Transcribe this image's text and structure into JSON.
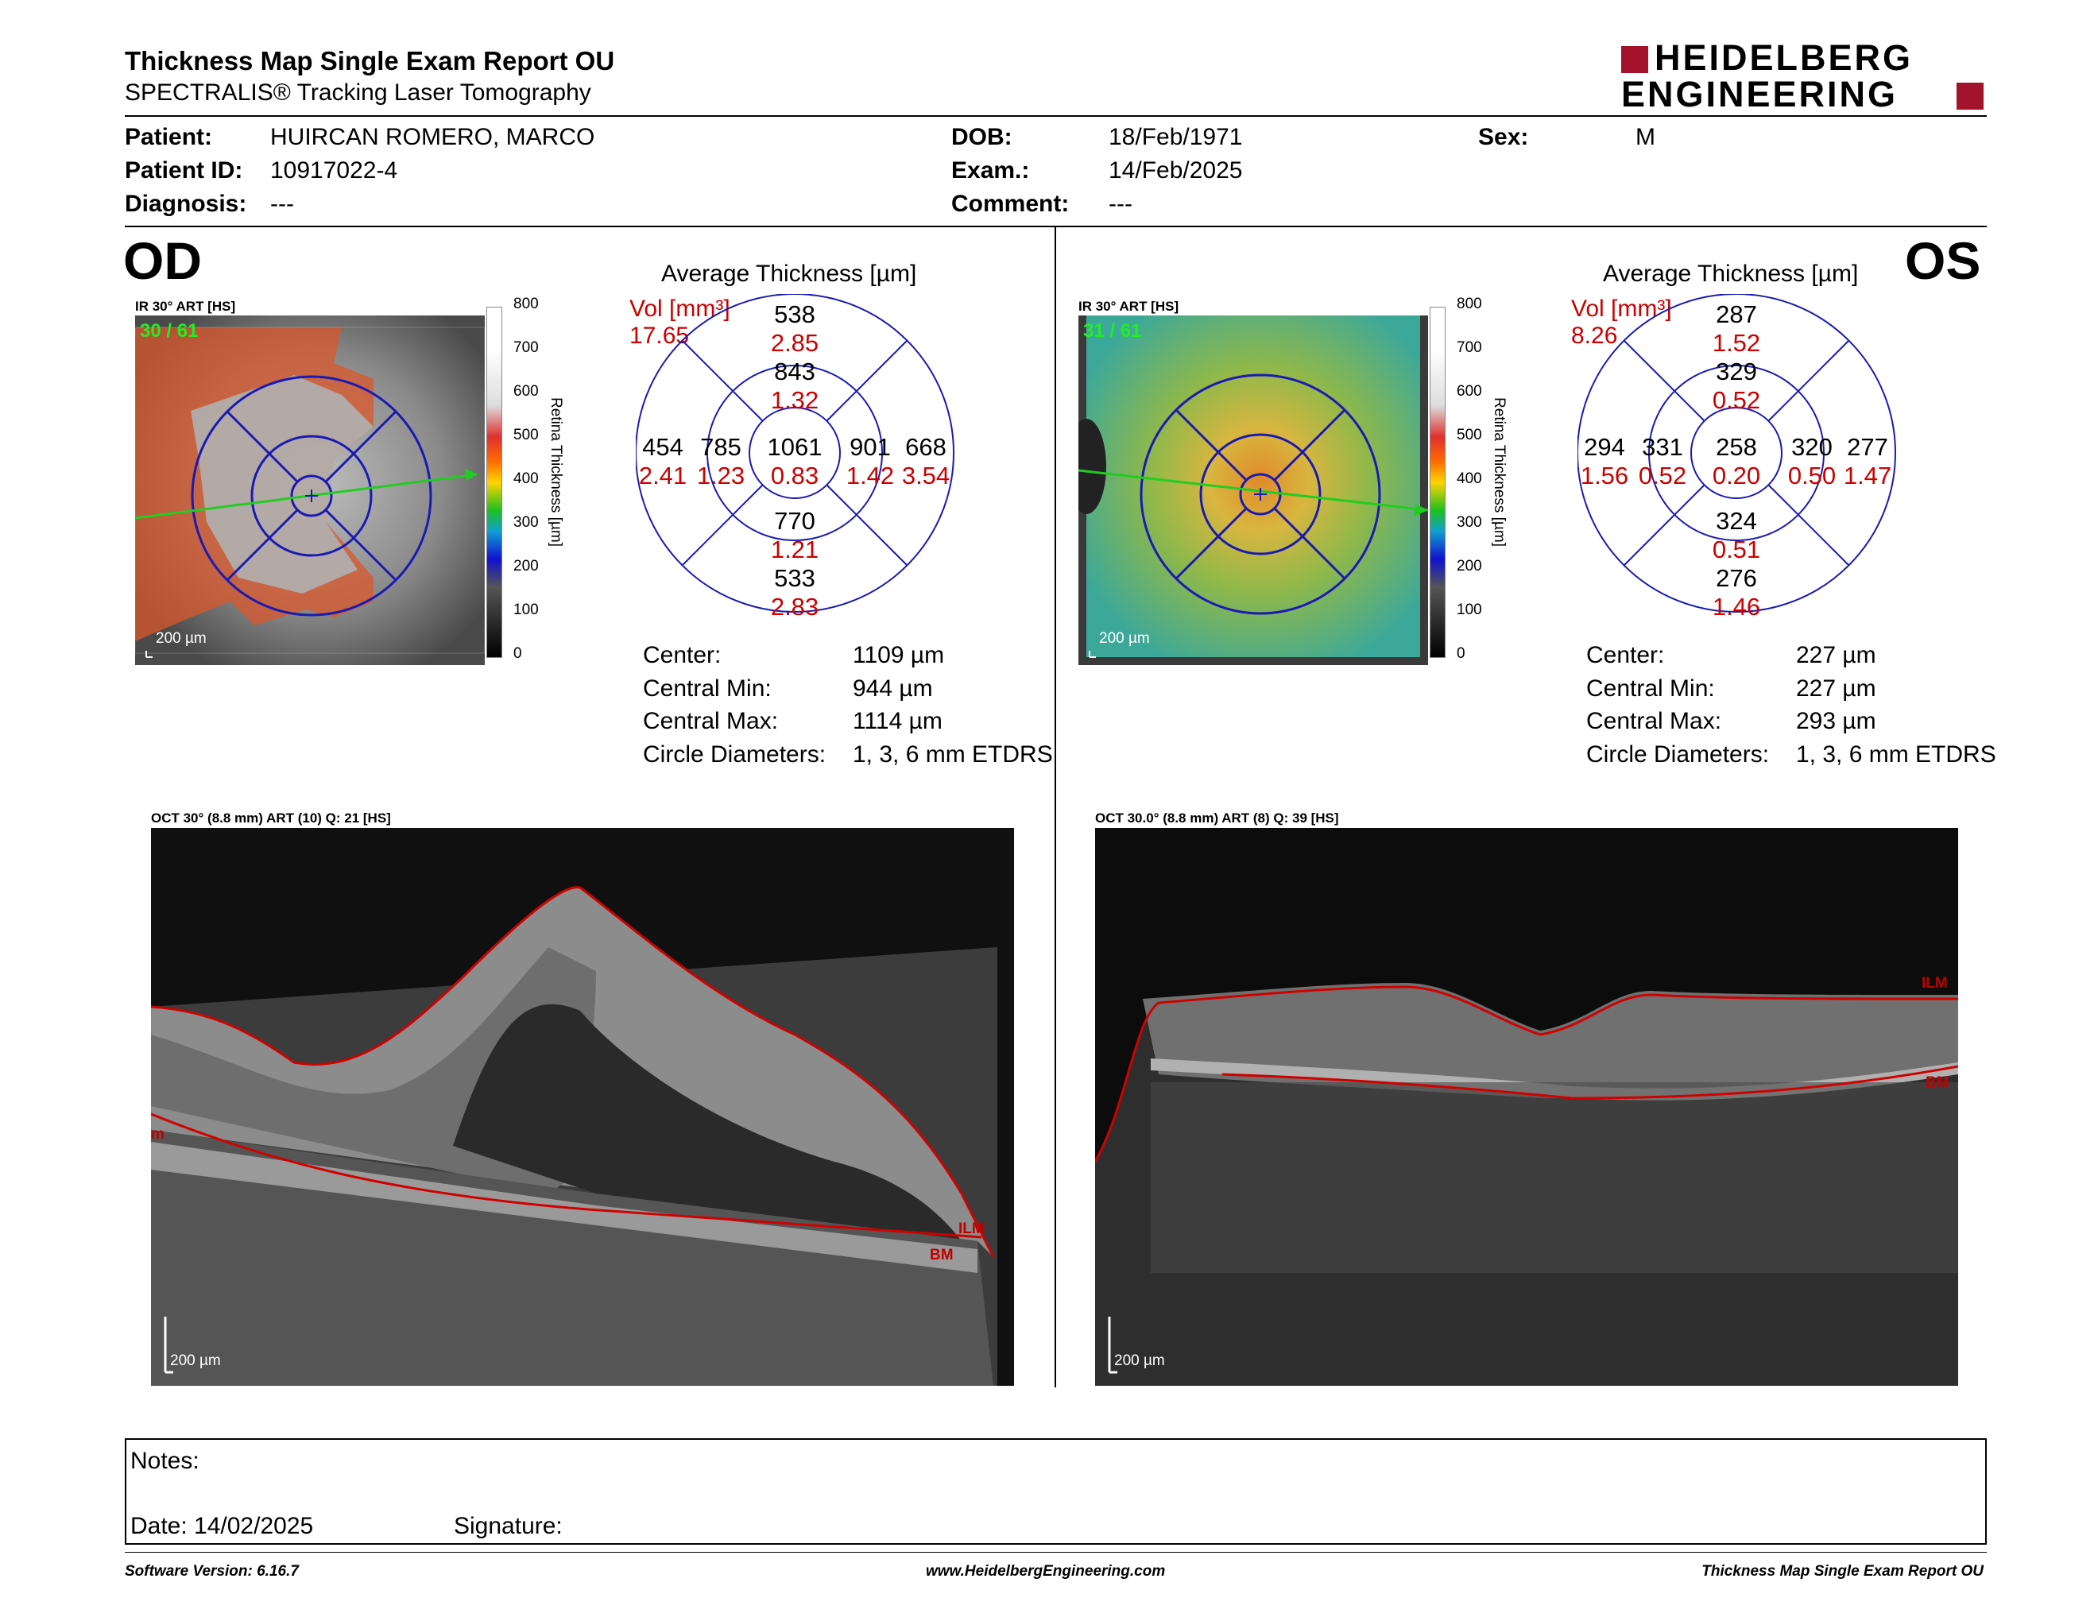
{
  "header": {
    "title": "Thickness Map Single Exam Report OU",
    "subtitle": "SPECTRALIS® Tracking Laser Tomography",
    "logo_line1": "HEIDELBERG",
    "logo_line2": "ENGINEERING",
    "brand_color": "#a3142c"
  },
  "patient": {
    "patient_label": "Patient:",
    "patient_value": "HUIRCAN ROMERO, MARCO",
    "id_label": "Patient ID:",
    "id_value": "10917022-4",
    "diagnosis_label": "Diagnosis:",
    "diagnosis_value": "---",
    "dob_label": "DOB:",
    "dob_value": "18/Feb/1971",
    "exam_label": "Exam.:",
    "exam_value": "14/Feb/2025",
    "comment_label": "Comment:",
    "comment_value": "---",
    "sex_label": "Sex:",
    "sex_value": "M"
  },
  "od": {
    "eye_label": "OD",
    "ir_label": "IR 30° ART [HS]",
    "scan_counter": "30 / 61",
    "scale_text": "200 µm",
    "colorbar_ticks": [
      "800",
      "700",
      "600",
      "500",
      "400",
      "300",
      "200",
      "100",
      "0"
    ],
    "colorbar_title": "Retina  Thickness [µm]",
    "grid_title": "Average Thickness [µm]",
    "vol_label": "Vol [mm³]",
    "vol_value": "17.65",
    "sectors": {
      "outer_superior": {
        "thick": "538",
        "vol": "2.85"
      },
      "inner_superior": {
        "thick": "843",
        "vol": "1.32"
      },
      "center": {
        "thick": "1061",
        "vol": "0.83"
      },
      "outer_temporal": {
        "thick": "454",
        "vol": "2.41"
      },
      "inner_temporal": {
        "thick": "785",
        "vol": "1.23"
      },
      "inner_nasal": {
        "thick": "901",
        "vol": "1.42"
      },
      "outer_nasal": {
        "thick": "668",
        "vol": "3.54"
      },
      "inner_inferior": {
        "thick": "770",
        "vol": "1.21"
      },
      "outer_inferior": {
        "thick": "533",
        "vol": "2.83"
      }
    },
    "stats": [
      {
        "label": "Center:",
        "value": "1109 µm"
      },
      {
        "label": "Central Min:",
        "value": "944 µm"
      },
      {
        "label": "Central Max:",
        "value": "1114 µm"
      },
      {
        "label": "Circle Diameters:",
        "value": "1, 3, 6 mm ETDRS"
      }
    ],
    "oct_label": "OCT 30° (8.8 mm) ART (10) Q: 21 [HS]",
    "oct_scale": "200 µm",
    "ilm_label": "ILM",
    "bm_label": "BM",
    "edge_label": "m"
  },
  "os": {
    "eye_label": "OS",
    "ir_label": "IR 30° ART [HS]",
    "scan_counter": "31 / 61",
    "scale_text": "200 µm",
    "colorbar_ticks": [
      "800",
      "700",
      "600",
      "500",
      "400",
      "300",
      "200",
      "100",
      "0"
    ],
    "colorbar_title": "Retina  Thickness [µm]",
    "grid_title": "Average Thickness [µm]",
    "vol_label": "Vol [mm³]",
    "vol_value": "8.26",
    "sectors": {
      "outer_superior": {
        "thick": "287",
        "vol": "1.52"
      },
      "inner_superior": {
        "thick": "329",
        "vol": "0.52"
      },
      "center": {
        "thick": "258",
        "vol": "0.20"
      },
      "outer_temporal": {
        "thick": "294",
        "vol": "1.56"
      },
      "inner_temporal": {
        "thick": "331",
        "vol": "0.52"
      },
      "inner_nasal": {
        "thick": "320",
        "vol": "0.50"
      },
      "outer_nasal": {
        "thick": "277",
        "vol": "1.47"
      },
      "inner_inferior": {
        "thick": "324",
        "vol": "0.51"
      },
      "outer_inferior": {
        "thick": "276",
        "vol": "1.46"
      }
    },
    "stats": [
      {
        "label": "Center:",
        "value": "227 µm"
      },
      {
        "label": "Central Min:",
        "value": "227 µm"
      },
      {
        "label": "Central Max:",
        "value": "293 µm"
      },
      {
        "label": "Circle Diameters:",
        "value": "1, 3, 6 mm ETDRS"
      }
    ],
    "oct_label": "OCT 30.0° (8.8 mm) ART (8) Q: 39 [HS]",
    "oct_scale": "200 µm",
    "ilm_label": "ILM",
    "bm_label": "BM"
  },
  "notes": {
    "notes_label": "Notes:",
    "date_label": "Date: 14/02/2025",
    "signature_label": "Signature:"
  },
  "footer": {
    "software": "Software Version: 6.16.7",
    "website": "www.HeidelbergEngineering.com",
    "report_name": "Thickness Map Single Exam Report OU"
  }
}
